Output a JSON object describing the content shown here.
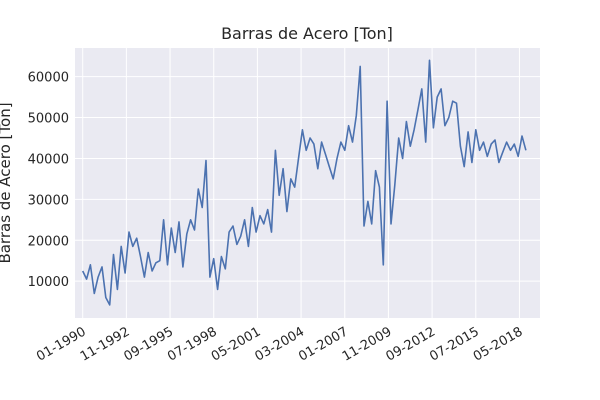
{
  "chart_data": {
    "type": "line",
    "title": "Barras de Acero [Ton]",
    "ylabel": "Barras de Acero [Ton]",
    "xlabel": "",
    "grid": true,
    "legend": "none",
    "colors": {
      "plot_bg": "#eaeaf2",
      "grid": "#ffffff",
      "line": "#4c72b0",
      "text": "#262626"
    },
    "xlim": [
      "1989-07",
      "2019-09"
    ],
    "ylim": [
      1000,
      67000
    ],
    "y_ticks": [
      10000,
      20000,
      30000,
      40000,
      50000,
      60000
    ],
    "x_tick_labels": [
      "01-1990",
      "11-1992",
      "09-1995",
      "07-1998",
      "05-2001",
      "03-2004",
      "01-2007",
      "11-2009",
      "09-2012",
      "07-2015",
      "05-2018"
    ],
    "x_tick_dates": [
      "1990-01",
      "1992-11",
      "1995-09",
      "1998-07",
      "2001-05",
      "2004-03",
      "2007-01",
      "2009-11",
      "2012-09",
      "2015-07",
      "2018-05"
    ],
    "series": [
      {
        "x": [
          "1990-01",
          "1990-04",
          "1990-07",
          "1990-10",
          "1991-01",
          "1991-04",
          "1991-07",
          "1991-10",
          "1992-01",
          "1992-04",
          "1992-07",
          "1992-10",
          "1993-01",
          "1993-04",
          "1993-07",
          "1993-10",
          "1994-01",
          "1994-04",
          "1994-07",
          "1994-10",
          "1995-01",
          "1995-04",
          "1995-07",
          "1995-10",
          "1996-01",
          "1996-04",
          "1996-07",
          "1996-10",
          "1997-01",
          "1997-04",
          "1997-07",
          "1997-10",
          "1998-01",
          "1998-04",
          "1998-07",
          "1998-10",
          "1999-01",
          "1999-04",
          "1999-07",
          "1999-10",
          "2000-01",
          "2000-04",
          "2000-07",
          "2000-10",
          "2001-01",
          "2001-04",
          "2001-07",
          "2001-10",
          "2002-01",
          "2002-04",
          "2002-07",
          "2002-10",
          "2003-01",
          "2003-04",
          "2003-07",
          "2003-10",
          "2004-01",
          "2004-04",
          "2004-07",
          "2004-10",
          "2005-01",
          "2005-04",
          "2005-07",
          "2005-10",
          "2006-01",
          "2006-04",
          "2006-07",
          "2006-10",
          "2007-01",
          "2007-04",
          "2007-07",
          "2007-10",
          "2008-01",
          "2008-04",
          "2008-07",
          "2008-10",
          "2009-01",
          "2009-04",
          "2009-07",
          "2009-10",
          "2010-01",
          "2010-04",
          "2010-07",
          "2010-10",
          "2011-01",
          "2011-04",
          "2011-07",
          "2011-10",
          "2012-01",
          "2012-04",
          "2012-07",
          "2012-10",
          "2013-01",
          "2013-04",
          "2013-07",
          "2013-10",
          "2014-01",
          "2014-04",
          "2014-07",
          "2014-10",
          "2015-01",
          "2015-04",
          "2015-07",
          "2015-10",
          "2016-01",
          "2016-04",
          "2016-07",
          "2016-10",
          "2017-01",
          "2017-04",
          "2017-07",
          "2017-10",
          "2018-01",
          "2018-04",
          "2018-07",
          "2018-10"
        ],
        "values": [
          12500,
          10500,
          14000,
          7000,
          11000,
          13500,
          6000,
          4200,
          16500,
          8000,
          18500,
          12000,
          22000,
          18500,
          20500,
          16000,
          11000,
          17000,
          12500,
          14500,
          15000,
          25000,
          14000,
          23000,
          17000,
          24500,
          13500,
          21500,
          25000,
          22500,
          32500,
          28000,
          39500,
          11000,
          15500,
          8000,
          16000,
          13000,
          22000,
          23500,
          19000,
          21000,
          25000,
          18500,
          28000,
          22000,
          26000,
          24000,
          27500,
          22000,
          42000,
          31000,
          37500,
          27000,
          35000,
          33000,
          40000,
          47000,
          42000,
          45000,
          43500,
          37500,
          44000,
          41000,
          38000,
          35000,
          40000,
          44000,
          42000,
          48000,
          44000,
          50500,
          62500,
          23500,
          29500,
          24000,
          37000,
          33000,
          14000,
          54000,
          24000,
          33500,
          45000,
          40000,
          49000,
          43000,
          47000,
          52000,
          57000,
          44000,
          64000,
          47500,
          55000,
          57000,
          48000,
          50000,
          54000,
          53500,
          43000,
          38000,
          46500,
          39000,
          47000,
          42000,
          44000,
          40500,
          43500,
          44500,
          39000,
          41500,
          44000,
          42000,
          43500,
          40500,
          45500,
          42000
        ]
      }
    ]
  }
}
